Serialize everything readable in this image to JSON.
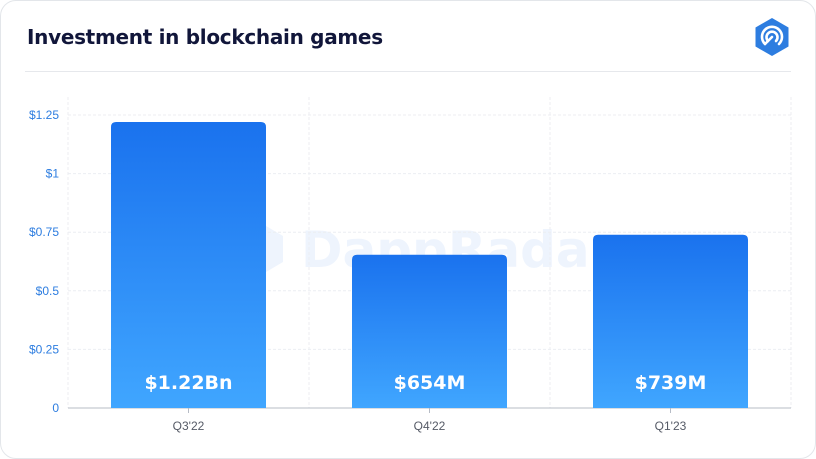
{
  "header": {
    "title": "Investment in blockchain games",
    "logo_icon": "dappradar-logo-icon"
  },
  "watermark": "DappRadar",
  "colors": {
    "bar_top": "#1a72ee",
    "bar_bottom": "#40a6ff",
    "tick_text": "#2d7de0",
    "title": "#11163a",
    "logo": "#2d7de0"
  },
  "chart_data": {
    "type": "bar",
    "title": "Investment in blockchain games",
    "xlabel": "",
    "ylabel": "",
    "categories": [
      "Q3'22",
      "Q4'22",
      "Q1'23"
    ],
    "values": [
      1.22,
      0.654,
      0.739
    ],
    "data_labels": [
      "$1.22Bn",
      "$654M",
      "$739M"
    ],
    "ylim": [
      0,
      1.25
    ],
    "yticks": [
      0,
      0.25,
      0.5,
      0.75,
      1,
      1.25
    ],
    "ytick_labels": [
      "0",
      "$0.25",
      "$0.5",
      "$0.75",
      "$1",
      "$1.25"
    ],
    "grid": true,
    "legend": "none"
  }
}
